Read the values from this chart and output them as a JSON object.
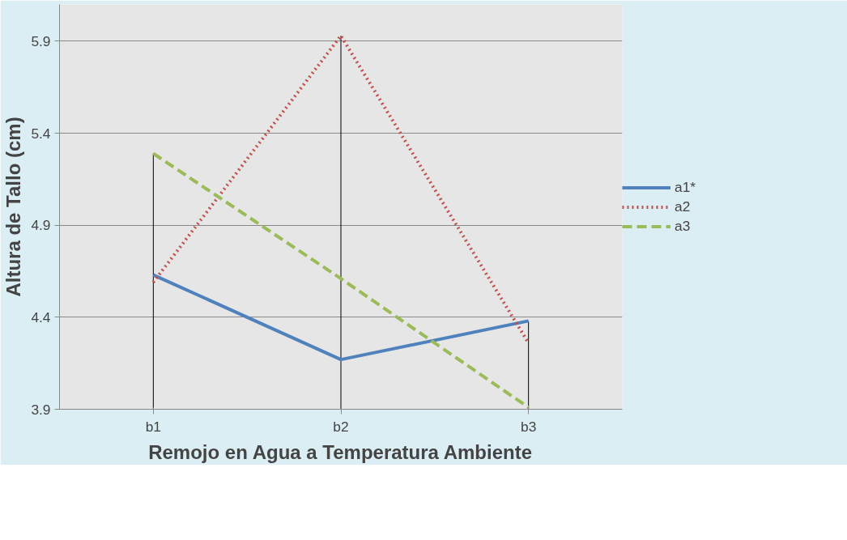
{
  "chart_data": {
    "type": "line",
    "xlabel": "Remojo en Agua a Temperatura Ambiente",
    "ylabel": "Altura de Tallo (cm)",
    "categories": [
      "b1",
      "b2",
      "b3"
    ],
    "series": [
      {
        "name": "a1*",
        "color": "#4f81bd",
        "values": [
          4.63,
          4.17,
          4.38
        ],
        "line_style": "solid",
        "errors": [
          null,
          null,
          [
            3.9,
            4.38
          ]
        ]
      },
      {
        "name": "a2",
        "color": "#c0504d",
        "values": [
          4.59,
          5.93,
          4.26
        ],
        "line_style": "dotted",
        "errors": [
          null,
          [
            3.9,
            5.93
          ],
          null
        ]
      },
      {
        "name": "a3",
        "color": "#9bbb59",
        "values": [
          5.29,
          4.61,
          3.91
        ],
        "line_style": "dashed",
        "errors": [
          [
            3.9,
            5.29
          ],
          null,
          null
        ]
      }
    ],
    "ylim": [
      3.9,
      6.1
    ],
    "yticks": [
      3.9,
      4.4,
      4.9,
      5.4,
      5.9
    ],
    "grid": "y",
    "legend": "right",
    "marker": "none"
  }
}
